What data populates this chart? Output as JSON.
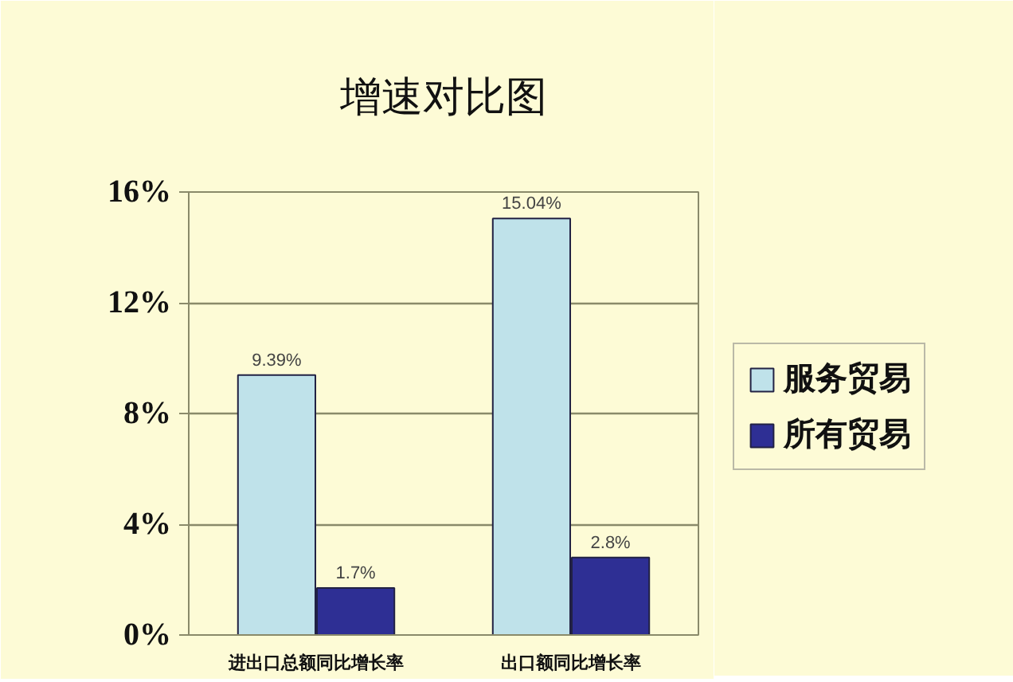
{
  "chart_data": {
    "type": "bar",
    "title": "增速对比图",
    "categories": [
      "进出口总额同比增长率",
      "出口额同比增长率"
    ],
    "series": [
      {
        "name": "服务贸易",
        "color": "#bfe2ea",
        "values": [
          9.39,
          15.04
        ],
        "value_labels": [
          "9.39%",
          "15.04%"
        ]
      },
      {
        "name": "所有贸易",
        "color": "#2e2f94",
        "values": [
          1.7,
          2.8
        ],
        "value_labels": [
          "1.7%",
          "2.8%"
        ]
      }
    ],
    "ylim": [
      0,
      16
    ],
    "yticks": [
      {
        "value": 0,
        "label": "0%"
      },
      {
        "value": 4,
        "label": "4%"
      },
      {
        "value": 8,
        "label": "8%"
      },
      {
        "value": 12,
        "label": "12%"
      },
      {
        "value": 16,
        "label": "16%"
      }
    ],
    "grid": "y",
    "legend": "right"
  }
}
